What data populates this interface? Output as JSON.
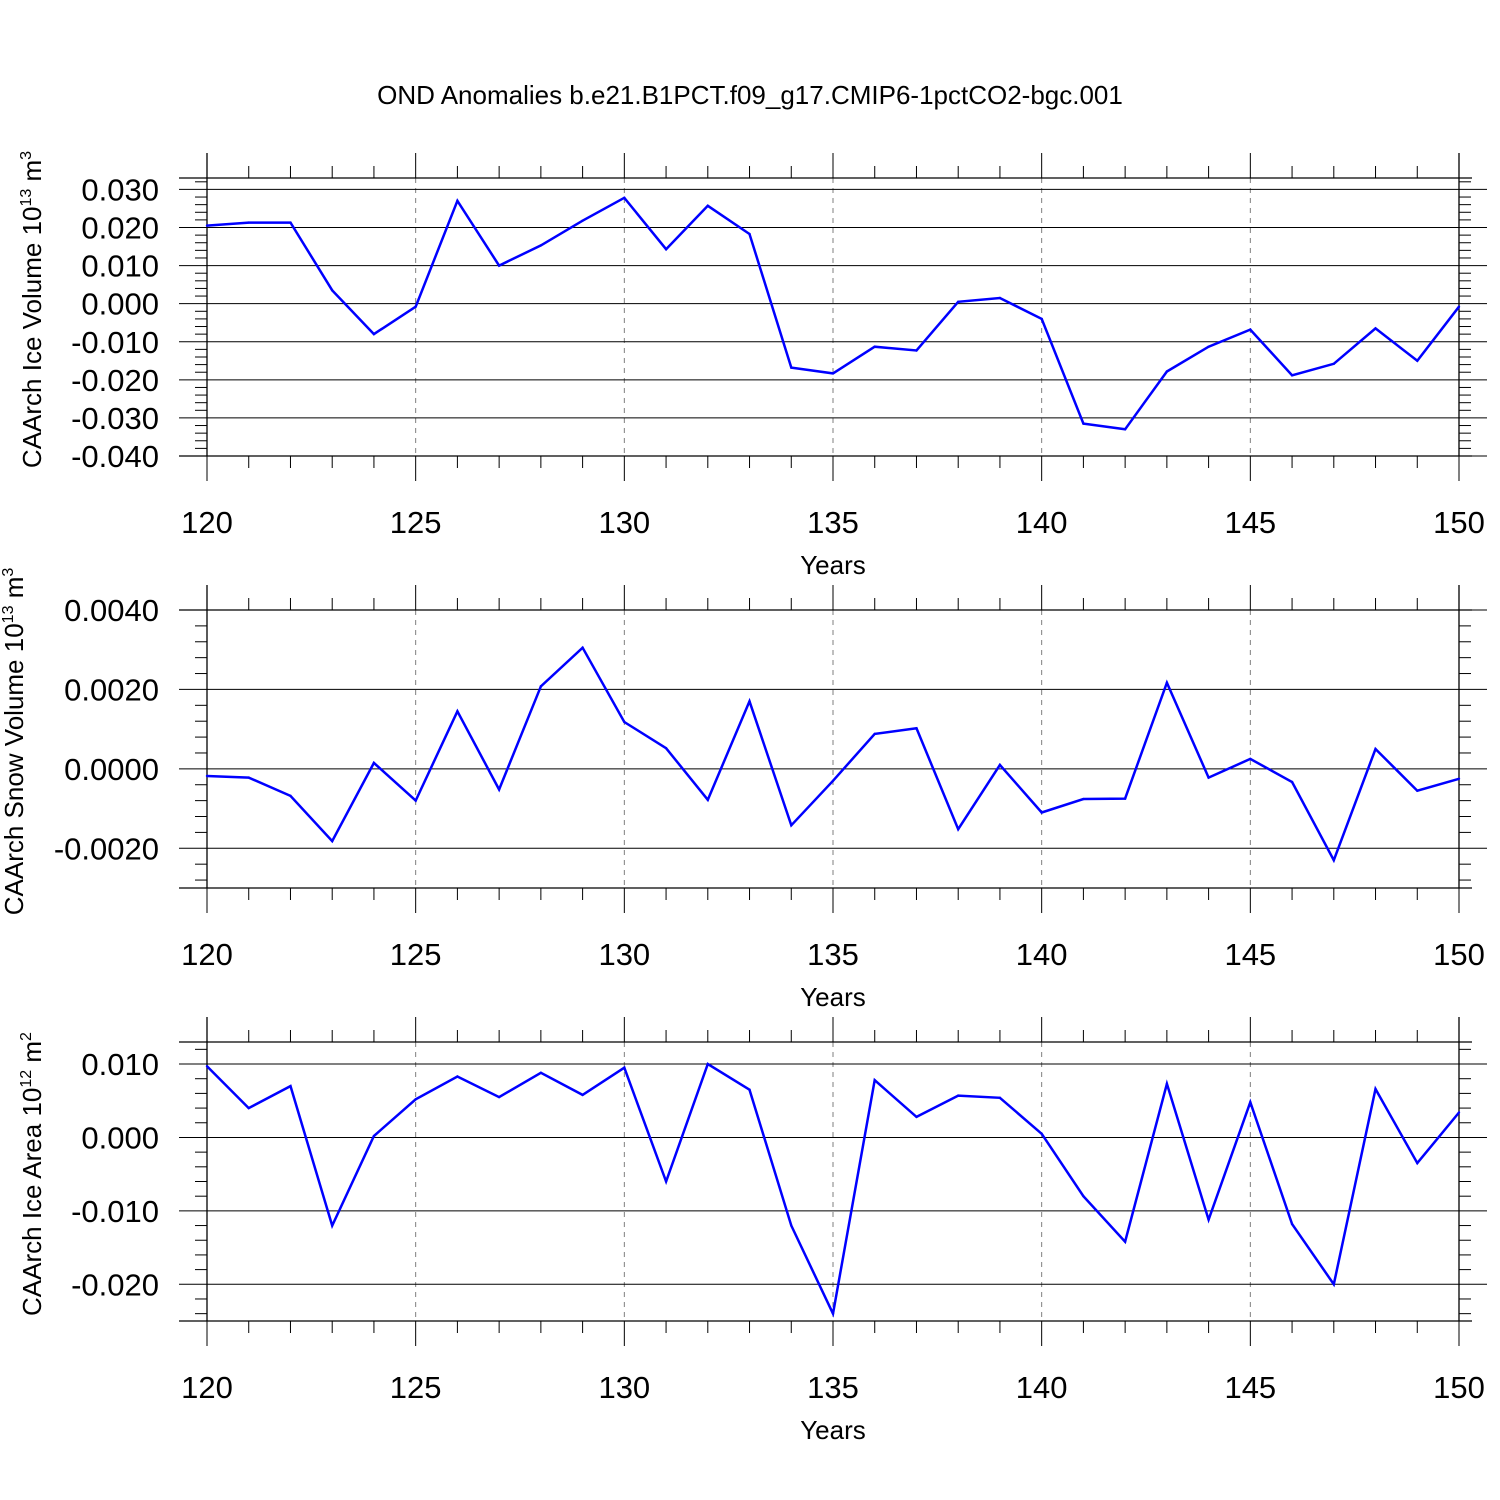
{
  "title": "OND Anomalies b.e21.B1PCT.f09_g17.CMIP6-1pctCO2-bgc.001",
  "colors": {
    "line": "#0000ff",
    "axis": "#000000",
    "grid": "#7f7f7f"
  },
  "chart_data": [
    {
      "type": "line",
      "xlabel": "Years",
      "ylabel": {
        "text": "CAArch Ice Volume 10",
        "exp": "13",
        "unit": " m",
        "unit_exp": "3"
      },
      "xlim": [
        120,
        150
      ],
      "ylim": [
        -0.04,
        0.033
      ],
      "xticks": [
        120,
        125,
        130,
        135,
        140,
        145,
        150
      ],
      "xtick_labels": [
        "120",
        "125",
        "130",
        "135",
        "140",
        "145",
        "150"
      ],
      "yticks": [
        -0.04,
        -0.03,
        -0.02,
        -0.01,
        0.0,
        0.01,
        0.02,
        0.03
      ],
      "ytick_labels": [
        "-0.040",
        "-0.030",
        "-0.020",
        "-0.010",
        "0.000",
        "0.010",
        "0.020",
        "0.030"
      ],
      "grid": "vertical dashed at major x ticks",
      "x": [
        120,
        121,
        122,
        123,
        124,
        125,
        126,
        127,
        128,
        129,
        130,
        131,
        132,
        133,
        134,
        135,
        136,
        137,
        138,
        139,
        140,
        141,
        142,
        143,
        144,
        145,
        146,
        147,
        148,
        149,
        150
      ],
      "values": [
        0.0205,
        0.0213,
        0.0213,
        0.0035,
        -0.008,
        -0.0008,
        0.027,
        0.01,
        0.0153,
        0.0218,
        0.0278,
        0.0143,
        0.0257,
        0.0183,
        -0.0168,
        -0.0183,
        -0.0113,
        -0.0123,
        0.0005,
        0.0015,
        -0.004,
        -0.0315,
        -0.033,
        -0.0178,
        -0.0113,
        -0.0068,
        -0.0188,
        -0.0158,
        -0.0065,
        -0.015,
        -0.0008
      ]
    },
    {
      "type": "line",
      "xlabel": "Years",
      "ylabel": {
        "text": "CAArch Snow Volume 10",
        "exp": "13",
        "unit": " m",
        "unit_exp": "3"
      },
      "xlim": [
        120,
        150
      ],
      "ylim": [
        -0.003,
        0.004
      ],
      "xticks": [
        120,
        125,
        130,
        135,
        140,
        145,
        150
      ],
      "xtick_labels": [
        "120",
        "125",
        "130",
        "135",
        "140",
        "145",
        "150"
      ],
      "yticks": [
        -0.002,
        0.0,
        0.002,
        0.004
      ],
      "ytick_labels": [
        "-0.0020",
        "0.0000",
        "0.0020",
        "0.0040"
      ],
      "grid": "vertical dashed at major x ticks",
      "x": [
        120,
        121,
        122,
        123,
        124,
        125,
        126,
        127,
        128,
        129,
        130,
        131,
        132,
        133,
        134,
        135,
        136,
        137,
        138,
        139,
        140,
        141,
        142,
        143,
        144,
        145,
        146,
        147,
        148,
        149,
        150
      ],
      "values": [
        -0.00018,
        -0.00022,
        -0.00068,
        -0.00182,
        0.00015,
        -0.0008,
        0.00145,
        -0.00052,
        0.00208,
        0.00305,
        0.00118,
        0.00052,
        -0.00078,
        0.0017,
        -0.00142,
        -0.0003,
        0.00088,
        0.00102,
        -0.00152,
        0.0001,
        -0.0011,
        -0.00076,
        -0.00075,
        0.00217,
        -0.00022,
        0.00025,
        -0.00033,
        -0.0023,
        0.0005,
        -0.00055,
        -0.00025
      ]
    },
    {
      "type": "line",
      "xlabel": "Years",
      "ylabel": {
        "text": "CAArch Ice Area 10",
        "exp": "12",
        "unit": " m",
        "unit_exp": "2"
      },
      "xlim": [
        120,
        150
      ],
      "ylim": [
        -0.025,
        0.013
      ],
      "xticks": [
        120,
        125,
        130,
        135,
        140,
        145,
        150
      ],
      "xtick_labels": [
        "120",
        "125",
        "130",
        "135",
        "140",
        "145",
        "150"
      ],
      "yticks": [
        -0.02,
        -0.01,
        0.0,
        0.01
      ],
      "ytick_labels": [
        "-0.020",
        "-0.010",
        "0.000",
        "0.010"
      ],
      "grid": "vertical dashed at major x ticks",
      "x": [
        120,
        121,
        122,
        123,
        124,
        125,
        126,
        127,
        128,
        129,
        130,
        131,
        132,
        133,
        134,
        135,
        136,
        137,
        138,
        139,
        140,
        141,
        142,
        143,
        144,
        145,
        146,
        147,
        148,
        149,
        150
      ],
      "values": [
        0.0097,
        0.004,
        0.007,
        -0.012,
        0.0002,
        0.0052,
        0.0083,
        0.0055,
        0.0088,
        0.0058,
        0.0095,
        -0.006,
        0.01,
        0.0065,
        -0.012,
        -0.024,
        0.0078,
        0.0028,
        0.0057,
        0.0054,
        0.0005,
        -0.008,
        -0.0142,
        0.0073,
        -0.0112,
        0.0048,
        -0.0118,
        -0.02,
        0.0066,
        -0.0035,
        0.0034
      ]
    }
  ]
}
